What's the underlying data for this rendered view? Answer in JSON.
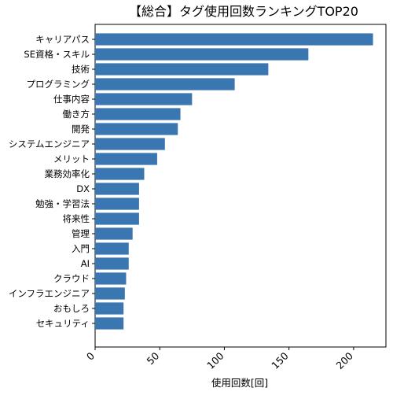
{
  "chart_data": {
    "type": "bar",
    "orientation": "horizontal",
    "title": "【総合】タグ使用回数ランキングTOP20",
    "xlabel": "使用回数[回]",
    "ylabel": "",
    "categories": [
      "キャリアパス",
      "SE資格・スキル",
      "技術",
      "プログラミング",
      "仕事内容",
      "働き方",
      "開発",
      "システムエンジニア",
      "メリット",
      "業務効率化",
      "DX",
      "勉強・学習法",
      "将来性",
      "管理",
      "入門",
      "AI",
      "クラウド",
      "インフラエンジニア",
      "おもしろ",
      "セキュリティ"
    ],
    "values": [
      215,
      165,
      134,
      108,
      75,
      66,
      64,
      54,
      48,
      38,
      34,
      34,
      34,
      29,
      26,
      26,
      24,
      23,
      22,
      22
    ],
    "xlim": [
      0,
      225
    ],
    "xticks": [
      "0",
      "50",
      "100",
      "150",
      "200"
    ],
    "grid": false,
    "legend": "none",
    "bar_color": "#3a76b0"
  }
}
